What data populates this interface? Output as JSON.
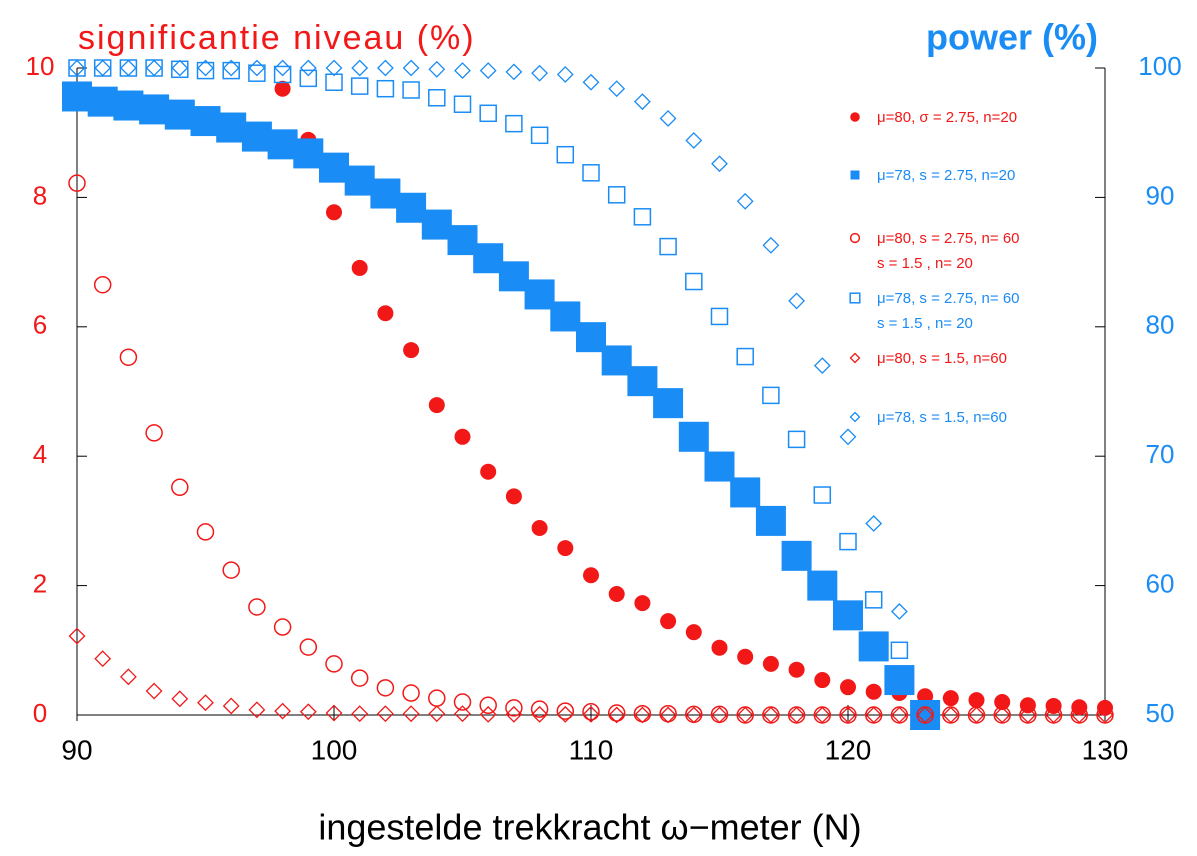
{
  "chart_data": {
    "type": "scatter",
    "title": "significantie niveau (%)",
    "y2_title": "power (%)",
    "x_label": "ingestelde trekkracht ω−meter (N)",
    "left_color": "#f21818",
    "right_color": "#1a8cf5",
    "xlim": [
      90,
      130
    ],
    "xticks": [
      90,
      100,
      110,
      120,
      130
    ],
    "ylim": [
      0,
      10
    ],
    "yticks": [
      0,
      2,
      4,
      6,
      8,
      10
    ],
    "y2lim": [
      50,
      100
    ],
    "y2ticks": [
      50,
      60,
      70,
      80,
      90,
      100
    ],
    "x": [
      90,
      91,
      92,
      93,
      94,
      95,
      96,
      97,
      98,
      99,
      100,
      101,
      102,
      103,
      104,
      105,
      106,
      107,
      108,
      109,
      110,
      111,
      112,
      113,
      114,
      115,
      116,
      117,
      118,
      119,
      120,
      121,
      122,
      123,
      124,
      125,
      126,
      127,
      128,
      129,
      130
    ],
    "series": [
      {
        "name": "μ=80, σ = 2.75, n=20",
        "color": "#f21818",
        "marker": "circle-filled",
        "axis": "y",
        "values": [
          null,
          null,
          null,
          null,
          null,
          null,
          null,
          null,
          9.68,
          8.89,
          7.77,
          6.91,
          6.21,
          5.64,
          4.79,
          4.3,
          3.76,
          3.38,
          2.89,
          2.58,
          2.16,
          1.87,
          1.73,
          1.45,
          1.28,
          1.04,
          0.9,
          0.79,
          0.7,
          0.54,
          0.43,
          0.36,
          0.34,
          0.29,
          0.26,
          0.23,
          0.2,
          0.15,
          0.14,
          0.12,
          0.11
        ]
      },
      {
        "name": "μ=78, s = 2.75, n=20",
        "color": "#1a8cf5",
        "marker": "square-filled",
        "axis": "y2",
        "values": [
          97.8,
          97.4,
          97.1,
          96.8,
          96.4,
          95.9,
          95.4,
          94.7,
          94.1,
          93.4,
          92.3,
          91.3,
          90.3,
          89.2,
          87.9,
          86.7,
          85.3,
          83.9,
          82.5,
          80.8,
          79.2,
          77.4,
          75.8,
          74.1,
          71.5,
          69.2,
          67.2,
          65.0,
          62.3,
          60.0,
          57.7,
          55.3,
          52.7,
          50.0,
          null,
          null,
          null,
          null,
          null,
          null,
          null
        ]
      },
      {
        "name": "μ=80, s = 2.75, n= 60\ns = 1.5  , n= 20",
        "color": "#f21818",
        "marker": "circle-open",
        "axis": "y",
        "values": [
          8.22,
          6.65,
          5.53,
          4.36,
          3.52,
          2.83,
          2.24,
          1.67,
          1.36,
          1.05,
          0.79,
          0.57,
          0.42,
          0.34,
          0.26,
          0.2,
          0.15,
          0.11,
          0.09,
          0.06,
          0.05,
          0.03,
          0.02,
          0.02,
          0.01,
          0.01,
          0,
          0,
          0,
          0,
          0,
          0,
          0,
          0,
          0,
          0,
          0,
          0,
          0,
          0,
          0
        ]
      },
      {
        "name": "μ=78, s = 2.75, n= 60\ns = 1.5  , n= 20",
        "color": "#1a8cf5",
        "marker": "square-open",
        "axis": "y2",
        "values": [
          100,
          100,
          100,
          100,
          99.9,
          99.8,
          99.8,
          99.6,
          99.5,
          99.2,
          98.9,
          98.6,
          98.4,
          98.3,
          97.7,
          97.2,
          96.5,
          95.7,
          94.8,
          93.3,
          91.9,
          90.2,
          88.5,
          86.2,
          83.5,
          80.8,
          77.7,
          74.7,
          71.3,
          67.0,
          63.4,
          58.9,
          55.0,
          null,
          null,
          null,
          null,
          null,
          null,
          null,
          null
        ]
      },
      {
        "name": "μ=80, s = 1.5, n=60",
        "color": "#f21818",
        "marker": "diamond-open",
        "axis": "y",
        "values": [
          1.22,
          0.87,
          0.59,
          0.37,
          0.25,
          0.19,
          0.14,
          0.08,
          0.06,
          0.05,
          0.03,
          0.02,
          0.02,
          0.02,
          0.02,
          0.02,
          0.01,
          0.01,
          0.01,
          0.01,
          0.01,
          0,
          0,
          0,
          0,
          0,
          0,
          0,
          0,
          0,
          0,
          0,
          0,
          0,
          0,
          0,
          0,
          0,
          0,
          0,
          0
        ]
      },
      {
        "name": "μ=78, s = 1.5, n=60",
        "color": "#1a8cf5",
        "marker": "diamond-open",
        "axis": "y2",
        "values": [
          100,
          100,
          100,
          100,
          100,
          100,
          100,
          100,
          100,
          100,
          100,
          100,
          100,
          100,
          99.9,
          99.8,
          99.8,
          99.7,
          99.6,
          99.5,
          98.9,
          98.4,
          97.4,
          96.1,
          94.4,
          92.6,
          89.7,
          86.3,
          82.0,
          77.0,
          71.5,
          64.8,
          58.0,
          null,
          null,
          null,
          null,
          null,
          null,
          null,
          null
        ]
      }
    ]
  }
}
